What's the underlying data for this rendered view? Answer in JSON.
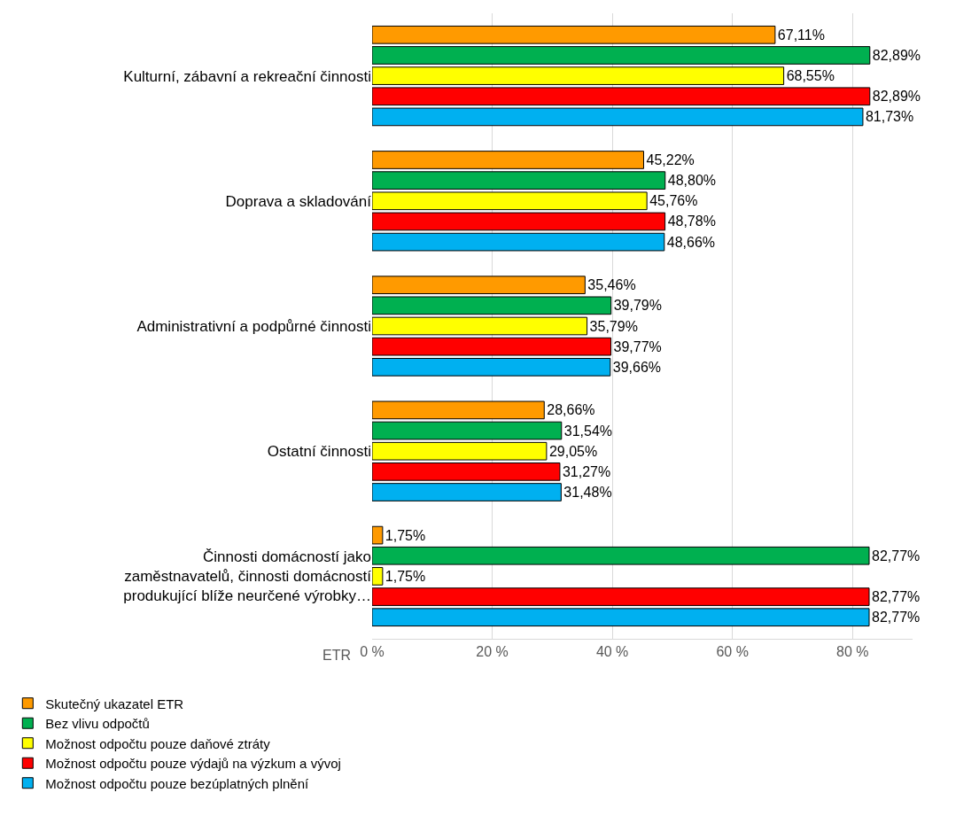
{
  "chart_data": {
    "type": "bar",
    "orientation": "horizontal",
    "categories": [
      "Kulturní, zábavní a rekreační činnosti",
      "Doprava a skladování",
      "Administrativní a podpůrné činnosti",
      "Ostatní činnosti",
      "Činnosti domácností jako zaměstnavatelů, činnosti domácností produkující blíže neurčené výrobky…"
    ],
    "series": [
      {
        "name": "Skutečný ukazatel ETR",
        "color": "#ff9a00",
        "values": [
          67.11,
          45.22,
          35.46,
          28.66,
          1.75
        ],
        "value_labels": [
          "67,11%",
          "45,22%",
          "35,46%",
          "28,66%",
          "1,75%"
        ]
      },
      {
        "name": "Bez vlivu odpočtů",
        "color": "#00b050",
        "values": [
          82.89,
          48.8,
          39.79,
          31.54,
          82.77
        ],
        "value_labels": [
          "82,89%",
          "48,80%",
          "39,79%",
          "31,54%",
          "82,77%"
        ]
      },
      {
        "name": "Možnost odpočtu pouze daňové ztráty",
        "color": "#ffff00",
        "values": [
          68.55,
          45.76,
          35.79,
          29.05,
          1.75
        ],
        "value_labels": [
          "68,55%",
          "45,76%",
          "35,79%",
          "29,05%",
          "1,75%"
        ]
      },
      {
        "name": "Možnost odpočtu pouze výdajů na výzkum a vývoj",
        "color": "#ff0000",
        "values": [
          82.89,
          48.78,
          39.77,
          31.27,
          82.77
        ],
        "value_labels": [
          "82,89%",
          "48,78%",
          "39,77%",
          "31,27%",
          "82,77%"
        ]
      },
      {
        "name": "Možnost odpočtu pouze bezúplatných plnění",
        "color": "#00b0f0",
        "values": [
          81.73,
          48.66,
          39.66,
          31.48,
          82.77
        ],
        "value_labels": [
          "81,73%",
          "48,66%",
          "39,66%",
          "31,48%",
          "82,77%"
        ]
      }
    ],
    "xlabel": "ETR",
    "xlim": [
      0,
      90
    ],
    "xticks": [
      {
        "value": 0,
        "label": "0 %"
      },
      {
        "value": 20,
        "label": "20 %"
      },
      {
        "value": 40,
        "label": "40 %"
      },
      {
        "value": 60,
        "label": "60 %"
      },
      {
        "value": 80,
        "label": "80 %"
      }
    ],
    "grid": "x",
    "legend": "bottom"
  }
}
